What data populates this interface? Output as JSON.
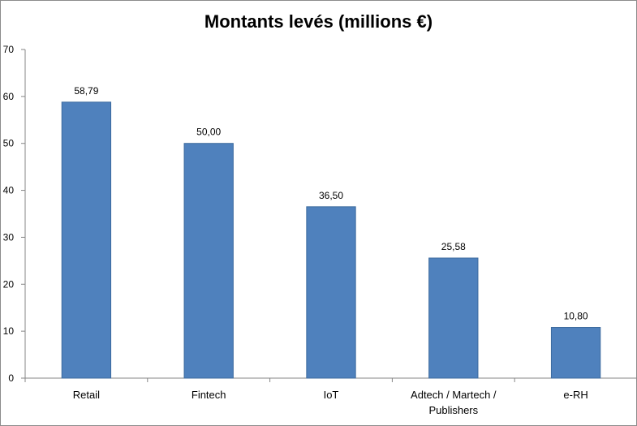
{
  "chart_data": {
    "type": "bar",
    "title": "Montants levés (millions €)",
    "categories": [
      "Retail",
      "Fintech",
      "IoT",
      "Adtech / Martech / Publishers",
      "e-RH"
    ],
    "category_label_lines": [
      [
        "Retail"
      ],
      [
        "Fintech"
      ],
      [
        "IoT"
      ],
      [
        "Adtech / Martech /",
        "Publishers"
      ],
      [
        "e-RH"
      ]
    ],
    "values": [
      58.79,
      50.0,
      36.5,
      25.58,
      10.8
    ],
    "data_labels": [
      "58,79",
      "50,00",
      "36,50",
      "25,58",
      "10,80"
    ],
    "ylim": [
      0,
      70
    ],
    "yticks": [
      0,
      10,
      20,
      30,
      40,
      50,
      60,
      70
    ],
    "xlabel": "",
    "ylabel": "",
    "grid": false,
    "legend": "none",
    "bar_color": "#4f81bd",
    "bar_edge_color": "#3c6a9e"
  }
}
